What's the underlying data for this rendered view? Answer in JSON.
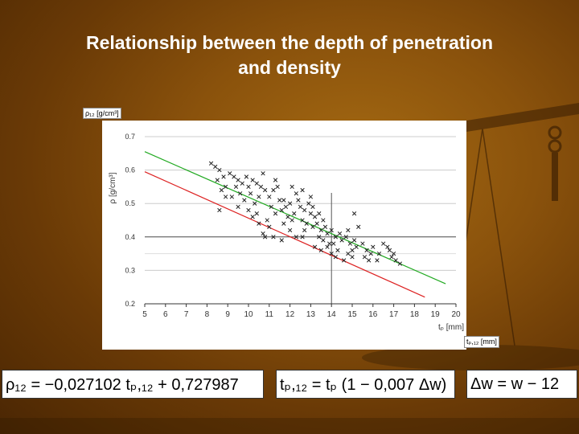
{
  "title": {
    "line1": "Relationship between the depth of penetration",
    "line2": "and density"
  },
  "tags": {
    "rho12": "ρ₁₂ [g/cm³]",
    "tp12": "tₚ,₁₂ [mm]"
  },
  "formulas": {
    "f1": "ρ₁₂ = −0,027102 tₚ,₁₂ + 0,727987",
    "f2": "tₚ,₁₂ = tₚ (1 − 0,007 Δw)",
    "f3": "Δw = w − 12"
  },
  "colors": {
    "fit_line_green": "#22aa22",
    "fit_line_red": "#dd2222",
    "marker": "#222222"
  },
  "chart_data": {
    "type": "scatter",
    "title": "",
    "xlabel": "tₚ [mm]",
    "ylabel": "ρ [g/cm³]",
    "xlim": [
      5,
      20
    ],
    "ylim": [
      0.2,
      0.7
    ],
    "xticks": [
      5,
      6,
      7,
      8,
      9,
      10,
      11,
      12,
      13,
      14,
      15,
      16,
      17,
      18,
      19,
      20
    ],
    "yticks": [
      0.2,
      0.3,
      0.4,
      0.5,
      0.6,
      0.7
    ],
    "grid": true,
    "reference_lines": {
      "x": 14,
      "y": 0.4
    },
    "marker": "x",
    "lines": [
      {
        "color": "green",
        "points": [
          [
            5,
            0.655
          ],
          [
            19.5,
            0.26
          ]
        ]
      },
      {
        "color": "red",
        "points": [
          [
            5,
            0.595
          ],
          [
            18.5,
            0.22
          ]
        ]
      }
    ],
    "points": [
      [
        8.2,
        0.62
      ],
      [
        8.4,
        0.61
      ],
      [
        8.6,
        0.6
      ],
      [
        8.5,
        0.57
      ],
      [
        8.8,
        0.58
      ],
      [
        8.9,
        0.55
      ],
      [
        8.7,
        0.54
      ],
      [
        8.9,
        0.52
      ],
      [
        8.6,
        0.48
      ],
      [
        9.1,
        0.59
      ],
      [
        9.3,
        0.58
      ],
      [
        9.5,
        0.57
      ],
      [
        9.4,
        0.55
      ],
      [
        9.6,
        0.53
      ],
      [
        9.2,
        0.52
      ],
      [
        9.8,
        0.51
      ],
      [
        9.7,
        0.56
      ],
      [
        9.9,
        0.58
      ],
      [
        10.0,
        0.55
      ],
      [
        10.2,
        0.57
      ],
      [
        10.4,
        0.56
      ],
      [
        10.1,
        0.53
      ],
      [
        10.3,
        0.5
      ],
      [
        10.5,
        0.52
      ],
      [
        10.6,
        0.55
      ],
      [
        10.0,
        0.48
      ],
      [
        10.2,
        0.46
      ],
      [
        10.4,
        0.47
      ],
      [
        10.7,
        0.59
      ],
      [
        10.8,
        0.54
      ],
      [
        11.0,
        0.52
      ],
      [
        11.2,
        0.54
      ],
      [
        11.1,
        0.49
      ],
      [
        11.3,
        0.47
      ],
      [
        10.9,
        0.45
      ],
      [
        11.0,
        0.43
      ],
      [
        11.2,
        0.4
      ],
      [
        11.4,
        0.55
      ],
      [
        11.5,
        0.51
      ],
      [
        10.8,
        0.4
      ],
      [
        10.7,
        0.41
      ],
      [
        11.6,
        0.48
      ],
      [
        11.8,
        0.49
      ],
      [
        12.0,
        0.5
      ],
      [
        11.9,
        0.46
      ],
      [
        12.1,
        0.45
      ],
      [
        11.7,
        0.44
      ],
      [
        12.2,
        0.47
      ],
      [
        12.3,
        0.53
      ],
      [
        12.4,
        0.51
      ],
      [
        12.0,
        0.42
      ],
      [
        11.6,
        0.39
      ],
      [
        12.3,
        0.4
      ],
      [
        12.5,
        0.49
      ],
      [
        12.7,
        0.48
      ],
      [
        12.9,
        0.5
      ],
      [
        12.6,
        0.45
      ],
      [
        12.8,
        0.44
      ],
      [
        13.0,
        0.47
      ],
      [
        12.7,
        0.42
      ],
      [
        13.1,
        0.43
      ],
      [
        12.6,
        0.4
      ],
      [
        13.2,
        0.46
      ],
      [
        13.3,
        0.44
      ],
      [
        13.5,
        0.42
      ],
      [
        13.4,
        0.4
      ],
      [
        13.7,
        0.43
      ],
      [
        13.8,
        0.41
      ],
      [
        13.6,
        0.39
      ],
      [
        13.9,
        0.38
      ],
      [
        13.2,
        0.37
      ],
      [
        13.5,
        0.36
      ],
      [
        13.4,
        0.47
      ],
      [
        14.0,
        0.42
      ],
      [
        14.2,
        0.4
      ],
      [
        14.1,
        0.38
      ],
      [
        14.3,
        0.36
      ],
      [
        14.4,
        0.41
      ],
      [
        14.0,
        0.35
      ],
      [
        14.5,
        0.39
      ],
      [
        13.8,
        0.37
      ],
      [
        14.2,
        0.34
      ],
      [
        14.7,
        0.4
      ],
      [
        14.9,
        0.38
      ],
      [
        15.0,
        0.36
      ],
      [
        14.8,
        0.35
      ],
      [
        15.1,
        0.39
      ],
      [
        15.2,
        0.37
      ],
      [
        14.6,
        0.33
      ],
      [
        15.0,
        0.34
      ],
      [
        15.1,
        0.47
      ],
      [
        15.3,
        0.43
      ],
      [
        15.5,
        0.38
      ],
      [
        15.7,
        0.36
      ],
      [
        15.9,
        0.35
      ],
      [
        15.6,
        0.34
      ],
      [
        16.0,
        0.37
      ],
      [
        16.3,
        0.35
      ],
      [
        16.5,
        0.38
      ],
      [
        16.2,
        0.33
      ],
      [
        15.8,
        0.33
      ],
      [
        16.8,
        0.36
      ],
      [
        17.0,
        0.35
      ],
      [
        17.1,
        0.33
      ],
      [
        16.9,
        0.34
      ],
      [
        17.3,
        0.32
      ],
      [
        16.7,
        0.37
      ],
      [
        13.0,
        0.52
      ],
      [
        12.1,
        0.55
      ],
      [
        11.3,
        0.57
      ],
      [
        12.6,
        0.54
      ],
      [
        13.1,
        0.49
      ],
      [
        11.7,
        0.51
      ],
      [
        10.5,
        0.44
      ],
      [
        9.5,
        0.49
      ],
      [
        14.8,
        0.42
      ],
      [
        13.6,
        0.45
      ]
    ]
  }
}
